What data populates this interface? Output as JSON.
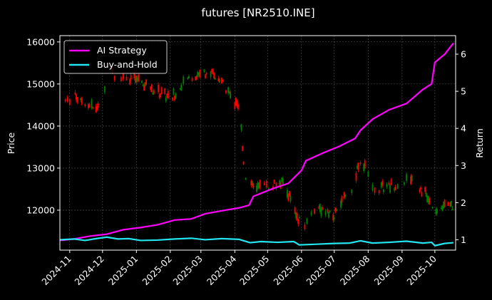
{
  "chart_data": {
    "type": "line",
    "title": "futures [NR2510.INE]",
    "xlabel": "",
    "ylabel": "Price",
    "y2label": "Return",
    "xlim": [
      "2024-10-23",
      "2025-10-20"
    ],
    "ylim": [
      11050,
      16150
    ],
    "y2lim": [
      0.72,
      6.5
    ],
    "x_ticks": [
      "2024-11",
      "2024-12",
      "2025-01",
      "2025-02",
      "2025-03",
      "2025-04",
      "2025-05",
      "2025-06",
      "2025-07",
      "2025-08",
      "2025-09",
      "2025-10"
    ],
    "y_ticks": [
      12000,
      13000,
      14000,
      15000,
      16000
    ],
    "y2_ticks": [
      1,
      2,
      3,
      4,
      5,
      6
    ],
    "grid": true,
    "legend_position": "top-left",
    "colors": {
      "ai_strategy": "#ff00ff",
      "buy_and_hold": "#22e5f0",
      "candle_up": "#008000",
      "candle_down": "#ff0000",
      "background": "#000000",
      "grid": "#555555"
    },
    "series": [
      {
        "name": "AI Strategy",
        "axis": "right",
        "x": [
          "2024-10-23",
          "2024-11-05",
          "2024-11-20",
          "2024-12-05",
          "2024-12-20",
          "2025-01-05",
          "2025-01-20",
          "2025-02-05",
          "2025-02-20",
          "2025-03-05",
          "2025-03-20",
          "2025-04-05",
          "2025-04-14",
          "2025-04-18",
          "2025-05-05",
          "2025-05-20",
          "2025-06-01",
          "2025-06-05",
          "2025-06-20",
          "2025-07-05",
          "2025-07-20",
          "2025-07-25",
          "2025-08-05",
          "2025-08-20",
          "2025-09-05",
          "2025-09-20",
          "2025-09-28",
          "2025-10-01",
          "2025-10-10",
          "2025-10-18"
        ],
        "values": [
          0.98,
          1.02,
          1.1,
          1.15,
          1.27,
          1.33,
          1.4,
          1.53,
          1.56,
          1.7,
          1.78,
          1.86,
          1.93,
          2.17,
          2.37,
          2.52,
          2.87,
          3.13,
          3.33,
          3.51,
          3.73,
          3.95,
          4.25,
          4.5,
          4.67,
          5.05,
          5.2,
          5.78,
          6.0,
          6.3
        ]
      },
      {
        "name": "Buy-and-Hold",
        "axis": "right",
        "x": [
          "2024-10-23",
          "2024-11-05",
          "2024-11-15",
          "2024-11-25",
          "2024-12-05",
          "2024-12-15",
          "2024-12-25",
          "2025-01-05",
          "2025-01-20",
          "2025-02-05",
          "2025-02-20",
          "2025-03-05",
          "2025-03-20",
          "2025-04-05",
          "2025-04-15",
          "2025-04-25",
          "2025-05-10",
          "2025-05-25",
          "2025-05-30",
          "2025-06-15",
          "2025-07-01",
          "2025-07-15",
          "2025-07-25",
          "2025-08-05",
          "2025-08-20",
          "2025-09-05",
          "2025-09-20",
          "2025-09-28",
          "2025-10-01",
          "2025-10-10",
          "2025-10-18"
        ],
        "values": [
          1.0,
          1.02,
          0.98,
          1.03,
          1.07,
          1.02,
          1.03,
          0.98,
          0.99,
          1.02,
          1.04,
          1.0,
          1.03,
          1.01,
          0.92,
          0.95,
          0.93,
          0.95,
          0.86,
          0.88,
          0.9,
          0.91,
          0.97,
          0.91,
          0.93,
          0.96,
          0.91,
          0.93,
          0.84,
          0.9,
          0.92
        ]
      },
      {
        "name": "Price",
        "axis": "left",
        "type": "candlestick",
        "x": [
          "2024-10-28",
          "2024-11-10",
          "2024-11-25",
          "2024-12-10",
          "2024-12-28",
          "2025-01-14",
          "2025-02-02",
          "2025-02-20",
          "2025-03-08",
          "2025-03-24",
          "2025-04-06",
          "2025-04-10",
          "2025-04-25",
          "2025-05-15",
          "2025-06-01",
          "2025-06-15",
          "2025-07-01",
          "2025-07-18",
          "2025-07-25",
          "2025-08-08",
          "2025-08-25",
          "2025-09-08",
          "2025-09-22",
          "2025-10-01",
          "2025-10-10",
          "2025-10-18"
        ],
        "values": [
          14600,
          14700,
          14350,
          15250,
          15150,
          14900,
          14650,
          15200,
          15300,
          14900,
          14300,
          12800,
          12500,
          12700,
          11600,
          12100,
          11900,
          12600,
          13200,
          12500,
          12600,
          12800,
          12400,
          11900,
          12200,
          12100
        ]
      }
    ]
  }
}
